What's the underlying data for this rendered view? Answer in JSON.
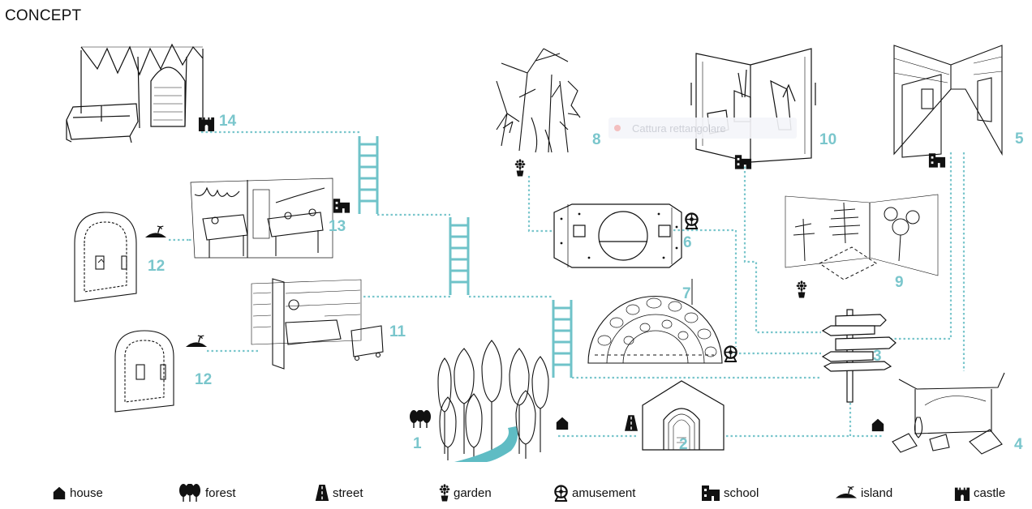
{
  "title": "CONCEPT",
  "accent_color": "#7ac6cc",
  "overlay_tooltip": "Cattura rettangolare",
  "nodes": [
    {
      "number": "1",
      "icon": "forest-icon"
    },
    {
      "number": "2",
      "icon": "street-icon"
    },
    {
      "number": "3",
      "icon": "signpost"
    },
    {
      "number": "4",
      "icon": "house-icon"
    },
    {
      "number": "5",
      "icon": "school-icon"
    },
    {
      "number": "6",
      "icon": "amusement-icon"
    },
    {
      "number": "7",
      "icon": "amusement-icon"
    },
    {
      "number": "8",
      "icon": "garden-icon"
    },
    {
      "number": "9",
      "icon": "garden-icon"
    },
    {
      "number": "10",
      "icon": "school-icon"
    },
    {
      "number": "11",
      "icon": "island-icon"
    },
    {
      "number": "12",
      "icon": "island-icon"
    },
    {
      "number": "12",
      "icon": "island-icon"
    },
    {
      "number": "13",
      "icon": "school-icon"
    },
    {
      "number": "14",
      "icon": "castle-icon"
    }
  ],
  "legend": [
    {
      "label": "house",
      "icon": "house-icon"
    },
    {
      "label": "forest",
      "icon": "forest-icon"
    },
    {
      "label": "street",
      "icon": "street-icon"
    },
    {
      "label": "garden",
      "icon": "garden-icon"
    },
    {
      "label": "amusement",
      "icon": "amusement-icon"
    },
    {
      "label": "school",
      "icon": "school-icon"
    },
    {
      "label": "island",
      "icon": "island-icon"
    },
    {
      "label": "castle",
      "icon": "castle-icon"
    }
  ]
}
